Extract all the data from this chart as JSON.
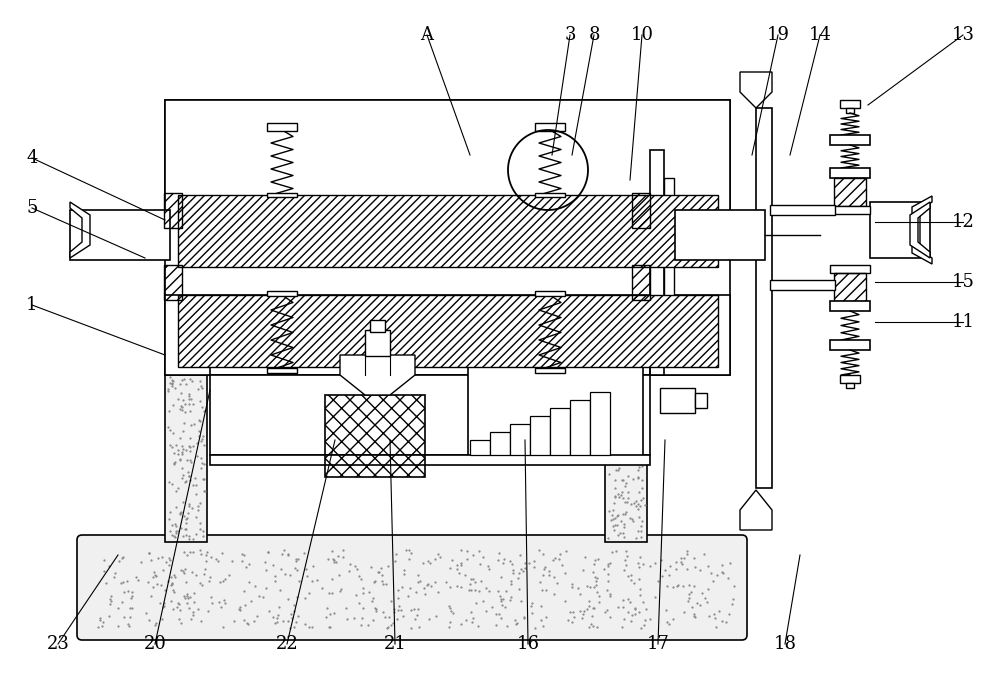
{
  "bg": "#ffffff",
  "lc": "#000000",
  "lw": 1.2,
  "fs": 13,
  "annotations": [
    [
      "A",
      427,
      35,
      470,
      155
    ],
    [
      "3",
      570,
      35,
      552,
      155
    ],
    [
      "8",
      594,
      35,
      572,
      155
    ],
    [
      "10",
      642,
      35,
      630,
      180
    ],
    [
      "19",
      778,
      35,
      752,
      155
    ],
    [
      "14",
      820,
      35,
      790,
      155
    ],
    [
      "13",
      963,
      35,
      868,
      105
    ],
    [
      "4",
      32,
      158,
      165,
      220
    ],
    [
      "5",
      32,
      208,
      145,
      258
    ],
    [
      "12",
      963,
      222,
      875,
      222
    ],
    [
      "15",
      963,
      282,
      875,
      282
    ],
    [
      "11",
      963,
      322,
      875,
      322
    ],
    [
      "1",
      32,
      305,
      165,
      355
    ],
    [
      "23",
      58,
      644,
      118,
      555
    ],
    [
      "20",
      155,
      644,
      210,
      390
    ],
    [
      "22",
      287,
      644,
      335,
      440
    ],
    [
      "21",
      395,
      644,
      390,
      440
    ],
    [
      "16",
      528,
      644,
      525,
      440
    ],
    [
      "17",
      658,
      644,
      665,
      440
    ],
    [
      "18",
      785,
      644,
      800,
      555
    ]
  ]
}
